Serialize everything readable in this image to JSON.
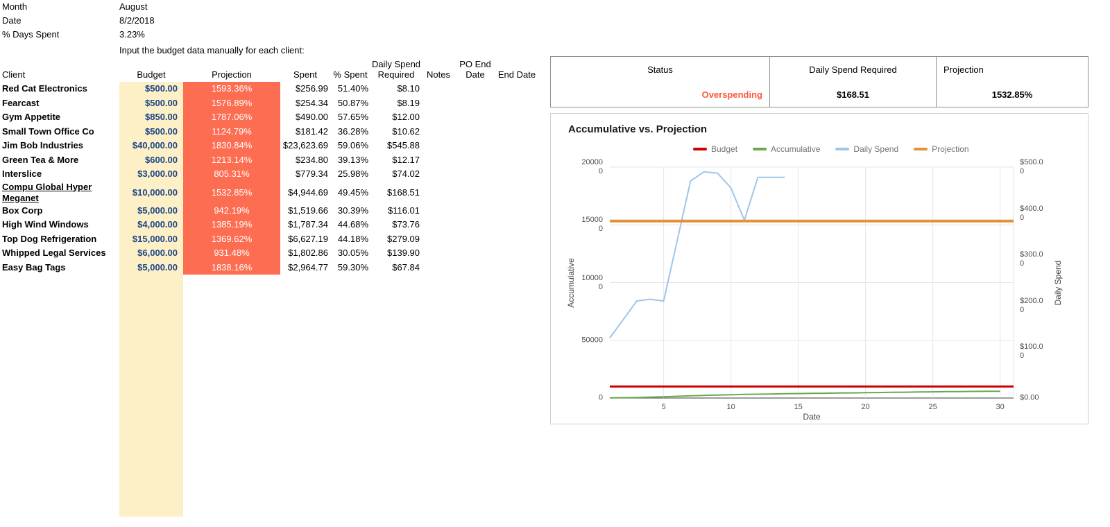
{
  "colors": {
    "budget_fill": "#fdf0c7",
    "projection_fill": "#fc6d51",
    "budget_text": "#1c4587",
    "status_text": "#fa573c"
  },
  "info": {
    "month_label": "Month",
    "month_value": "August",
    "date_label": "Date",
    "date_value": "8/2/2018",
    "days_spent_label": "% Days Spent",
    "days_spent_value": "3.23%",
    "instruction": "Input the budget data manually for each client:"
  },
  "table": {
    "columns": [
      {
        "key": "client",
        "label": "Client"
      },
      {
        "key": "budget",
        "label": "Budget"
      },
      {
        "key": "projection",
        "label": "Projection"
      },
      {
        "key": "spent",
        "label": "Spent"
      },
      {
        "key": "pct_spent",
        "label": "% Spent"
      },
      {
        "key": "daily_spend_required",
        "label": "Daily Spend Required"
      },
      {
        "key": "notes",
        "label": "Notes"
      },
      {
        "key": "po_end_date",
        "label": "PO End Date"
      },
      {
        "key": "end_date",
        "label": "End Date"
      }
    ],
    "rows": [
      {
        "client": "Red Cat Electronics",
        "budget": "$500.00",
        "projection": "1593.36%",
        "spent": "$256.99",
        "pct_spent": "51.40%",
        "daily_spend_required": "$8.10",
        "notes": "",
        "po_end_date": "",
        "end_date": ""
      },
      {
        "client": "Fearcast",
        "budget": "$500.00",
        "projection": "1576.89%",
        "spent": "$254.34",
        "pct_spent": "50.87%",
        "daily_spend_required": "$8.19",
        "notes": "",
        "po_end_date": "",
        "end_date": ""
      },
      {
        "client": "Gym Appetite",
        "budget": "$850.00",
        "projection": "1787.06%",
        "spent": "$490.00",
        "pct_spent": "57.65%",
        "daily_spend_required": "$12.00",
        "notes": "",
        "po_end_date": "",
        "end_date": ""
      },
      {
        "client": "Small Town Office Co",
        "budget": "$500.00",
        "projection": "1124.79%",
        "spent": "$181.42",
        "pct_spent": "36.28%",
        "daily_spend_required": "$10.62",
        "notes": "",
        "po_end_date": "",
        "end_date": ""
      },
      {
        "client": "Jim Bob Industries",
        "budget": "$40,000.00",
        "projection": "1830.84%",
        "spent": "$23,623.69",
        "pct_spent": "59.06%",
        "daily_spend_required": "$545.88",
        "notes": "",
        "po_end_date": "",
        "end_date": ""
      },
      {
        "client": "Green Tea & More",
        "budget": "$600.00",
        "projection": "1213.14%",
        "spent": "$234.80",
        "pct_spent": "39.13%",
        "daily_spend_required": "$12.17",
        "notes": "",
        "po_end_date": "",
        "end_date": ""
      },
      {
        "client": "Interslice",
        "budget": "$3,000.00",
        "projection": "805.31%",
        "spent": "$779.34",
        "pct_spent": "25.98%",
        "daily_spend_required": "$74.02",
        "notes": "",
        "po_end_date": "",
        "end_date": ""
      },
      {
        "client": "Compu Global Hyper Meganet",
        "underline": true,
        "budget": "$10,000.00",
        "projection": "1532.85%",
        "spent": "$4,944.69",
        "pct_spent": "49.45%",
        "daily_spend_required": "$168.51",
        "notes": "",
        "po_end_date": "",
        "end_date": ""
      },
      {
        "client": "Box Corp",
        "budget": "$5,000.00",
        "projection": "942.19%",
        "spent": "$1,519.66",
        "pct_spent": "30.39%",
        "daily_spend_required": "$116.01",
        "notes": "",
        "po_end_date": "",
        "end_date": ""
      },
      {
        "client": "High Wind Windows",
        "budget": "$4,000.00",
        "projection": "1385.19%",
        "spent": "$1,787.34",
        "pct_spent": "44.68%",
        "daily_spend_required": "$73.76",
        "notes": "",
        "po_end_date": "",
        "end_date": ""
      },
      {
        "client": "Top Dog Refrigeration",
        "budget": "$15,000.00",
        "projection": "1369.62%",
        "spent": "$6,627.19",
        "pct_spent": "44.18%",
        "daily_spend_required": "$279.09",
        "notes": "",
        "po_end_date": "",
        "end_date": ""
      },
      {
        "client": "Whipped Legal Services",
        "budget": "$6,000.00",
        "projection": "931.48%",
        "spent": "$1,802.86",
        "pct_spent": "30.05%",
        "daily_spend_required": "$139.90",
        "notes": "",
        "po_end_date": "",
        "end_date": ""
      },
      {
        "client": "Easy Bag Tags",
        "budget": "$5,000.00",
        "projection": "1838.16%",
        "spent": "$2,964.77",
        "pct_spent": "59.30%",
        "daily_spend_required": "$67.84",
        "notes": "",
        "po_end_date": "",
        "end_date": ""
      }
    ]
  },
  "summary": {
    "headers": [
      "Status",
      "Daily Spend Required",
      "Projection"
    ],
    "status": "Overspending",
    "daily_spend_required": "$168.51",
    "projection": "1532.85%"
  },
  "chart_data": {
    "type": "line",
    "title": "Accumulative vs. Projection",
    "xlabel": "Date",
    "x_range": [
      1,
      31
    ],
    "x_ticks": [
      5,
      10,
      15,
      20,
      25,
      30
    ],
    "left_axis": {
      "title": "Accumulative",
      "range": [
        0,
        200000
      ],
      "ticks": [
        0,
        50000,
        100000,
        150000,
        200000
      ],
      "tick_labels": [
        "0",
        "50000",
        "100000",
        "150000",
        "200000"
      ]
    },
    "right_axis": {
      "title": "Daily Spend",
      "range": [
        0,
        500
      ],
      "ticks": [
        0,
        100,
        200,
        300,
        400,
        500
      ],
      "tick_labels": [
        "$0.00",
        "$100.00",
        "$200.00",
        "$300.00",
        "$400.00",
        "$500.00"
      ]
    },
    "legend_position": "top",
    "grid": true,
    "series": [
      {
        "name": "Budget",
        "axis": "left",
        "color": "#cc0000",
        "width": 3,
        "x": [
          1,
          31
        ],
        "values": [
          10000,
          10000
        ]
      },
      {
        "name": "Accumulative",
        "axis": "left",
        "color": "#6aa84f",
        "width": 2,
        "x": [
          1,
          2,
          3,
          4,
          5,
          6,
          7,
          8,
          9,
          10,
          11,
          12,
          13,
          14,
          15,
          16,
          17,
          18,
          19,
          20,
          21,
          22,
          23,
          24,
          25,
          26,
          27,
          28,
          29,
          30
        ],
        "values": [
          100,
          300,
          500,
          800,
          1100,
          1500,
          1900,
          2300,
          2600,
          2900,
          3100,
          3300,
          3500,
          3700,
          3850,
          4000,
          4150,
          4300,
          4450,
          4600,
          4750,
          4900,
          5050,
          5200,
          5350,
          5500,
          5600,
          5700,
          5800,
          5900
        ]
      },
      {
        "name": "Daily Spend",
        "axis": "right",
        "color": "#9fc5e8",
        "width": 2,
        "x": [
          1,
          2,
          3,
          4,
          5,
          6,
          7,
          8,
          9,
          10,
          11,
          12,
          13,
          14
        ],
        "values": [
          130,
          170,
          210,
          214,
          210,
          340,
          470,
          490,
          487,
          455,
          385,
          478,
          478,
          478
        ]
      },
      {
        "name": "Projection",
        "axis": "left",
        "color": "#e69138",
        "width": 4,
        "x": [
          1,
          31
        ],
        "values": [
          153285,
          153285
        ]
      }
    ]
  }
}
